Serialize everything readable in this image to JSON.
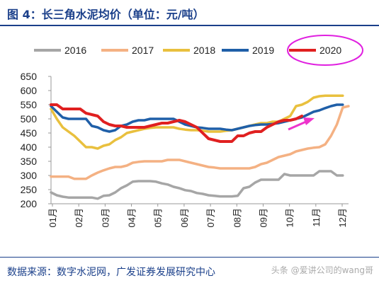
{
  "figure": {
    "title": "图 4：长三角水泥均价（单位：元/吨）",
    "source": "数据来源：数字水泥网，广发证券发展研究中心",
    "watermark": "头条 @爱讲公司的wang哥"
  },
  "colors": {
    "brand_blue": "#1a3f8a",
    "highlight_ellipse": "#e020e0",
    "arrow": "#ee33cc"
  },
  "chart_data": {
    "type": "line",
    "ylim": [
      200,
      650
    ],
    "yticks": [
      200,
      250,
      300,
      350,
      400,
      450,
      500,
      550,
      600,
      650
    ],
    "x_tick_labels": [
      "01月",
      "02月",
      "03月",
      "04月",
      "05月",
      "06月",
      "07月",
      "08月",
      "09月",
      "10月",
      "11月",
      "12月"
    ],
    "x_range_weeks": [
      1,
      52
    ],
    "grid": false,
    "legend_position": "top",
    "series": [
      {
        "name": "2016",
        "color": "#a6a6a6",
        "x": [
          1,
          2,
          3,
          4,
          5,
          6,
          7,
          8,
          9,
          10,
          11,
          12,
          13,
          14,
          15,
          16,
          17,
          18,
          19,
          20,
          21,
          22,
          23,
          24,
          25,
          26,
          27,
          28,
          29,
          30,
          31,
          32,
          33,
          34,
          35,
          36,
          37,
          38,
          39,
          40,
          41,
          42,
          43,
          44,
          45,
          46,
          47,
          48,
          49,
          50,
          51
        ],
        "values": [
          240,
          230,
          225,
          222,
          222,
          222,
          222,
          222,
          218,
          228,
          230,
          240,
          255,
          265,
          278,
          280,
          280,
          280,
          278,
          272,
          268,
          260,
          255,
          248,
          245,
          238,
          235,
          230,
          228,
          226,
          226,
          226,
          228,
          255,
          260,
          275,
          285,
          285,
          285,
          285,
          305,
          300,
          300,
          300,
          300,
          300,
          315,
          315,
          315,
          300,
          300
        ]
      },
      {
        "name": "2017",
        "color": "#f4b183",
        "x": [
          1,
          2,
          3,
          4,
          5,
          6,
          7,
          8,
          9,
          10,
          11,
          12,
          13,
          14,
          15,
          16,
          17,
          18,
          19,
          20,
          21,
          22,
          23,
          24,
          25,
          26,
          27,
          28,
          29,
          30,
          31,
          32,
          33,
          34,
          35,
          36,
          37,
          38,
          39,
          40,
          41,
          42,
          43,
          44,
          45,
          46,
          47,
          48,
          49,
          50,
          51,
          52
        ],
        "values": [
          296,
          296,
          296,
          296,
          288,
          288,
          288,
          300,
          310,
          318,
          325,
          330,
          330,
          335,
          345,
          348,
          350,
          350,
          350,
          350,
          355,
          355,
          355,
          350,
          345,
          340,
          335,
          330,
          328,
          325,
          325,
          325,
          325,
          325,
          325,
          330,
          340,
          345,
          355,
          365,
          370,
          375,
          385,
          390,
          395,
          398,
          400,
          410,
          440,
          480,
          540,
          545
        ]
      },
      {
        "name": "2018",
        "color": "#e9c03e",
        "x": [
          1,
          2,
          3,
          4,
          5,
          6,
          7,
          8,
          9,
          10,
          11,
          12,
          13,
          14,
          15,
          16,
          17,
          18,
          19,
          20,
          21,
          22,
          23,
          24,
          25,
          26,
          27,
          28,
          29,
          30,
          31,
          32,
          33,
          34,
          35,
          36,
          37,
          38,
          39,
          40,
          41,
          42,
          43,
          44,
          45,
          46,
          47,
          48,
          49,
          50,
          51
        ],
        "values": [
          535,
          500,
          470,
          455,
          440,
          420,
          400,
          400,
          395,
          405,
          410,
          425,
          435,
          450,
          455,
          460,
          465,
          468,
          470,
          470,
          470,
          470,
          465,
          462,
          460,
          460,
          458,
          455,
          455,
          455,
          458,
          460,
          465,
          470,
          475,
          480,
          485,
          485,
          490,
          490,
          500,
          510,
          545,
          550,
          560,
          575,
          580,
          582,
          582,
          582,
          582
        ]
      },
      {
        "name": "2019",
        "color": "#1f5fa8",
        "x": [
          1,
          2,
          3,
          4,
          5,
          6,
          7,
          8,
          9,
          10,
          11,
          12,
          13,
          14,
          15,
          16,
          17,
          18,
          19,
          20,
          21,
          22,
          23,
          24,
          25,
          26,
          27,
          28,
          29,
          30,
          31,
          32,
          33,
          34,
          35,
          36,
          37,
          38,
          39,
          40,
          41,
          42,
          43,
          44,
          45,
          46,
          47,
          48,
          49,
          50,
          51
        ],
        "values": [
          545,
          525,
          505,
          500,
          500,
          500,
          500,
          475,
          470,
          460,
          455,
          460,
          475,
          480,
          490,
          495,
          495,
          500,
          500,
          500,
          500,
          500,
          490,
          480,
          475,
          470,
          468,
          465,
          465,
          465,
          462,
          460,
          465,
          470,
          475,
          478,
          480,
          480,
          482,
          485,
          490,
          495,
          500,
          505,
          515,
          525,
          530,
          538,
          545,
          550,
          550
        ]
      },
      {
        "name": "2020",
        "color": "#e02020",
        "x": [
          1,
          2,
          3,
          4,
          5,
          6,
          7,
          8,
          9,
          10,
          11,
          12,
          13,
          14,
          15,
          16,
          17,
          18,
          19,
          20,
          21,
          22,
          23,
          24,
          25,
          26,
          27,
          28,
          29,
          30,
          31,
          32,
          33,
          34,
          35,
          36,
          37,
          38,
          39,
          40,
          41,
          42,
          43,
          44
        ],
        "values": [
          550,
          550,
          535,
          535,
          535,
          535,
          520,
          515,
          510,
          490,
          480,
          475,
          475,
          470,
          470,
          470,
          470,
          475,
          480,
          485,
          485,
          490,
          495,
          490,
          480,
          470,
          450,
          430,
          425,
          420,
          420,
          420,
          440,
          440,
          450,
          455,
          455,
          470,
          480,
          490,
          495,
          495,
          500,
          510
        ]
      }
    ]
  }
}
